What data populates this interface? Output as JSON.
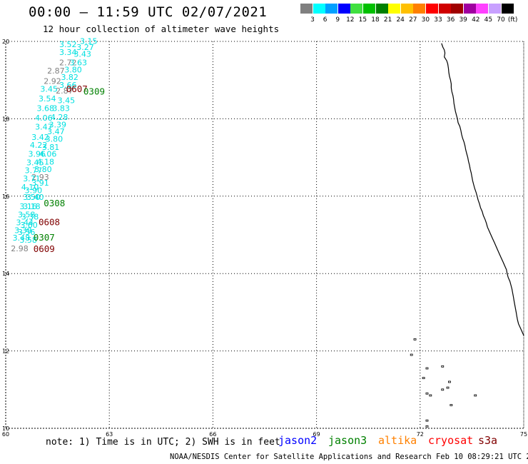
{
  "header": {
    "title": "00:00 – 11:59 UTC 02/07/2021",
    "subtitle": "12 hour collection of altimeter wave heights"
  },
  "legend": {
    "unit": "(ft)",
    "swatches": [
      {
        "color": "#808080",
        "label": "3"
      },
      {
        "color": "#00ffff",
        "label": "6"
      },
      {
        "color": "#00a0ff",
        "label": "9"
      },
      {
        "color": "#0000ff",
        "label": "12"
      },
      {
        "color": "#40e040",
        "label": "15"
      },
      {
        "color": "#00c000",
        "label": "18"
      },
      {
        "color": "#008000",
        "label": "21"
      },
      {
        "color": "#ffff00",
        "label": "24"
      },
      {
        "color": "#ffc000",
        "label": "27"
      },
      {
        "color": "#ff8000",
        "label": "30"
      },
      {
        "color": "#ff0000",
        "label": "33"
      },
      {
        "color": "#d00000",
        "label": "36"
      },
      {
        "color": "#a00000",
        "label": "39"
      },
      {
        "color": "#a000a0",
        "label": "42"
      },
      {
        "color": "#ff40ff",
        "label": "45"
      },
      {
        "color": "#c8a0ff",
        "label": "70"
      },
      {
        "color": "#000000",
        "label": ""
      }
    ]
  },
  "map": {
    "lon_range": [
      60,
      75
    ],
    "lat_range": [
      10,
      20
    ],
    "lon_ticks": [
      "60",
      "63",
      "66",
      "69",
      "72",
      "75"
    ],
    "lat_ticks": [
      "20",
      "18",
      "16",
      "14",
      "12",
      "10"
    ],
    "observations": [
      {
        "value": "3.15",
        "color": "#00e0e0",
        "lon": 62.15,
        "lat": 19.94
      },
      {
        "value": "3.52",
        "color": "#00e0e0",
        "lon": 61.55,
        "lat": 19.85
      },
      {
        "value": "3.27",
        "color": "#00e0e0",
        "lon": 62.05,
        "lat": 19.78
      },
      {
        "value": "3.34",
        "color": "#00e0e0",
        "lon": 61.55,
        "lat": 19.65
      },
      {
        "value": "3.43",
        "color": "#00e0e0",
        "lon": 61.97,
        "lat": 19.6
      },
      {
        "value": "2.72",
        "color": "#808080",
        "lon": 61.55,
        "lat": 19.38
      },
      {
        "value": "3.63",
        "color": "#00e0e0",
        "lon": 61.85,
        "lat": 19.38
      },
      {
        "value": "2.87",
        "color": "#808080",
        "lon": 61.2,
        "lat": 19.17
      },
      {
        "value": "3.80",
        "color": "#00e0e0",
        "lon": 61.7,
        "lat": 19.2
      },
      {
        "value": "2.92",
        "color": "#808080",
        "lon": 61.1,
        "lat": 18.9
      },
      {
        "value": "3.82",
        "color": "#00e0e0",
        "lon": 61.6,
        "lat": 19.0
      },
      {
        "value": "3.66",
        "color": "#00e0e0",
        "lon": 61.55,
        "lat": 18.8
      },
      {
        "value": "3.45",
        "color": "#00e0e0",
        "lon": 61.0,
        "lat": 18.7
      },
      {
        "value": "2.87",
        "color": "#808080",
        "lon": 61.45,
        "lat": 18.65
      },
      {
        "value": "3.54",
        "color": "#00e0e0",
        "lon": 60.95,
        "lat": 18.45
      },
      {
        "value": "3.45",
        "color": "#00e0e0",
        "lon": 61.5,
        "lat": 18.4
      },
      {
        "value": "3.68",
        "color": "#00e0e0",
        "lon": 60.9,
        "lat": 18.2
      },
      {
        "value": "3.83",
        "color": "#00e0e0",
        "lon": 61.35,
        "lat": 18.2
      },
      {
        "value": "4.06",
        "color": "#00e0e0",
        "lon": 60.85,
        "lat": 17.95
      },
      {
        "value": "4.28",
        "color": "#00e0e0",
        "lon": 61.3,
        "lat": 17.97
      },
      {
        "value": "3.47",
        "color": "#00e0e0",
        "lon": 60.85,
        "lat": 17.72
      },
      {
        "value": "3.39",
        "color": "#00e0e0",
        "lon": 61.25,
        "lat": 17.78
      },
      {
        "value": "3.47",
        "color": "#00e0e0",
        "lon": 61.2,
        "lat": 17.6
      },
      {
        "value": "3.42",
        "color": "#00e0e0",
        "lon": 60.75,
        "lat": 17.45
      },
      {
        "value": "3.80",
        "color": "#00e0e0",
        "lon": 61.15,
        "lat": 17.41
      },
      {
        "value": "4.22",
        "color": "#00e0e0",
        "lon": 60.7,
        "lat": 17.25
      },
      {
        "value": "3.81",
        "color": "#00e0e0",
        "lon": 61.05,
        "lat": 17.2
      },
      {
        "value": "3.96",
        "color": "#00e0e0",
        "lon": 60.65,
        "lat": 17.02
      },
      {
        "value": "4.06",
        "color": "#00e0e0",
        "lon": 60.97,
        "lat": 17.02
      },
      {
        "value": "3.45",
        "color": "#00e0e0",
        "lon": 60.6,
        "lat": 16.8
      },
      {
        "value": "4.18",
        "color": "#00e0e0",
        "lon": 60.9,
        "lat": 16.82
      },
      {
        "value": "3.77",
        "color": "#00e0e0",
        "lon": 60.55,
        "lat": 16.6
      },
      {
        "value": "3.80",
        "color": "#00e0e0",
        "lon": 60.83,
        "lat": 16.62
      },
      {
        "value": "2.93",
        "color": "#808080",
        "lon": 60.75,
        "lat": 16.42
      },
      {
        "value": "3.71",
        "color": "#00e0e0",
        "lon": 60.5,
        "lat": 16.38
      },
      {
        "value": "3.91",
        "color": "#00e0e0",
        "lon": 60.75,
        "lat": 16.27
      },
      {
        "value": "4.10",
        "color": "#00e0e0",
        "lon": 60.45,
        "lat": 16.16
      },
      {
        "value": "3.90",
        "color": "#00e0e0",
        "lon": 60.55,
        "lat": 16.08
      },
      {
        "value": "3.50",
        "color": "#00e0e0",
        "lon": 60.5,
        "lat": 15.9
      },
      {
        "value": "3.40",
        "color": "#00e0e0",
        "lon": 60.6,
        "lat": 15.9
      },
      {
        "value": "3.16",
        "color": "#00e0e0",
        "lon": 60.4,
        "lat": 15.66
      },
      {
        "value": "3.18",
        "color": "#00e0e0",
        "lon": 60.5,
        "lat": 15.66
      },
      {
        "value": "3.58",
        "color": "#00e0e0",
        "lon": 60.35,
        "lat": 15.45
      },
      {
        "value": "3.38",
        "color": "#00e0e0",
        "lon": 60.45,
        "lat": 15.4
      },
      {
        "value": "3.44",
        "color": "#00e0e0",
        "lon": 60.3,
        "lat": 15.25
      },
      {
        "value": "3.60",
        "color": "#00e0e0",
        "lon": 60.42,
        "lat": 15.18
      },
      {
        "value": "3.39",
        "color": "#00e0e0",
        "lon": 60.25,
        "lat": 15.05
      },
      {
        "value": "3.56",
        "color": "#00e0e0",
        "lon": 60.35,
        "lat": 15.0
      },
      {
        "value": "3.48",
        "color": "#00e0e0",
        "lon": 60.2,
        "lat": 14.85
      },
      {
        "value": "3.58",
        "color": "#00e0e0",
        "lon": 60.4,
        "lat": 14.8
      },
      {
        "value": "2.98",
        "color": "#808080",
        "lon": 60.15,
        "lat": 14.58
      }
    ],
    "pass_labels": [
      {
        "text": "0607",
        "color": "#800000",
        "lon": 61.75,
        "lat": 18.69
      },
      {
        "text": "0309",
        "color": "#008000",
        "lon": 62.25,
        "lat": 18.63
      },
      {
        "text": "0308",
        "color": "#008000",
        "lon": 61.1,
        "lat": 15.74
      },
      {
        "text": "0608",
        "color": "#800000",
        "lon": 60.95,
        "lat": 15.25
      },
      {
        "text": "0307",
        "color": "#008000",
        "lon": 60.8,
        "lat": 14.85
      },
      {
        "text": "0609",
        "color": "#800000",
        "lon": 60.8,
        "lat": 14.56
      }
    ],
    "coastline": [
      [
        72.62,
        19.95
      ],
      [
        72.66,
        19.85
      ],
      [
        72.7,
        19.78
      ],
      [
        72.72,
        19.7
      ],
      [
        72.7,
        19.6
      ],
      [
        72.77,
        19.5
      ],
      [
        72.8,
        19.42
      ],
      [
        72.82,
        19.3
      ],
      [
        72.83,
        19.2
      ],
      [
        72.85,
        19.1
      ],
      [
        72.88,
        19.0
      ],
      [
        72.9,
        18.9
      ],
      [
        72.9,
        18.8
      ],
      [
        72.92,
        18.7
      ],
      [
        72.95,
        18.6
      ],
      [
        72.97,
        18.5
      ],
      [
        72.98,
        18.4
      ],
      [
        73.0,
        18.3
      ],
      [
        73.02,
        18.2
      ],
      [
        73.05,
        18.1
      ],
      [
        73.08,
        18.0
      ],
      [
        73.1,
        17.9
      ],
      [
        73.15,
        17.8
      ],
      [
        73.18,
        17.7
      ],
      [
        73.2,
        17.6
      ],
      [
        73.23,
        17.5
      ],
      [
        73.27,
        17.4
      ],
      [
        73.3,
        17.3
      ],
      [
        73.32,
        17.2
      ],
      [
        73.35,
        17.1
      ],
      [
        73.38,
        17.0
      ],
      [
        73.4,
        16.9
      ],
      [
        73.43,
        16.8
      ],
      [
        73.45,
        16.7
      ],
      [
        73.48,
        16.6
      ],
      [
        73.5,
        16.5
      ],
      [
        73.52,
        16.4
      ],
      [
        73.55,
        16.3
      ],
      [
        73.58,
        16.2
      ],
      [
        73.62,
        16.1
      ],
      [
        73.65,
        16.0
      ],
      [
        73.68,
        15.9
      ],
      [
        73.72,
        15.8
      ],
      [
        73.75,
        15.7
      ],
      [
        73.8,
        15.6
      ],
      [
        73.83,
        15.5
      ],
      [
        73.88,
        15.4
      ],
      [
        73.92,
        15.3
      ],
      [
        73.95,
        15.2
      ],
      [
        74.0,
        15.1
      ],
      [
        74.05,
        15.0
      ],
      [
        74.1,
        14.9
      ],
      [
        74.15,
        14.8
      ],
      [
        74.2,
        14.7
      ],
      [
        74.25,
        14.6
      ],
      [
        74.3,
        14.5
      ],
      [
        74.35,
        14.4
      ],
      [
        74.4,
        14.3
      ],
      [
        74.45,
        14.2
      ],
      [
        74.5,
        14.1
      ],
      [
        74.52,
        14.0
      ],
      [
        74.55,
        13.9
      ],
      [
        74.6,
        13.8
      ],
      [
        74.63,
        13.7
      ],
      [
        74.66,
        13.6
      ],
      [
        74.68,
        13.5
      ],
      [
        74.7,
        13.4
      ],
      [
        74.72,
        13.3
      ],
      [
        74.74,
        13.2
      ],
      [
        74.76,
        13.1
      ],
      [
        74.78,
        13.0
      ],
      [
        74.8,
        12.9
      ],
      [
        74.82,
        12.8
      ],
      [
        74.85,
        12.7
      ],
      [
        74.9,
        12.6
      ],
      [
        74.95,
        12.5
      ],
      [
        75.0,
        12.4
      ]
    ],
    "islands": [
      [
        71.85,
        12.3
      ],
      [
        71.75,
        11.9
      ],
      [
        72.2,
        11.55
      ],
      [
        72.65,
        11.6
      ],
      [
        72.1,
        11.3
      ],
      [
        72.85,
        11.2
      ],
      [
        72.65,
        11.0
      ],
      [
        72.8,
        11.05
      ],
      [
        72.2,
        10.9
      ],
      [
        72.3,
        10.85
      ],
      [
        72.9,
        10.6
      ],
      [
        72.2,
        10.2
      ],
      [
        73.6,
        10.85
      ],
      [
        72.2,
        10.05
      ]
    ]
  },
  "footer": {
    "note": "note: 1) Time is in UTC; 2) SWH is in feet",
    "satellites": [
      {
        "name": "jason2",
        "color": "#0000ff"
      },
      {
        "name": "jason3",
        "color": "#008000"
      },
      {
        "name": "altika",
        "color": "#ff8000"
      },
      {
        "name": "cryosat",
        "color": "#ff0000"
      },
      {
        "name": "s3a",
        "color": "#800000"
      }
    ],
    "credit": "NOAA/NESDIS Center for Satellite Applications and Research   Feb 10 08:29:21 UTC 2021"
  }
}
